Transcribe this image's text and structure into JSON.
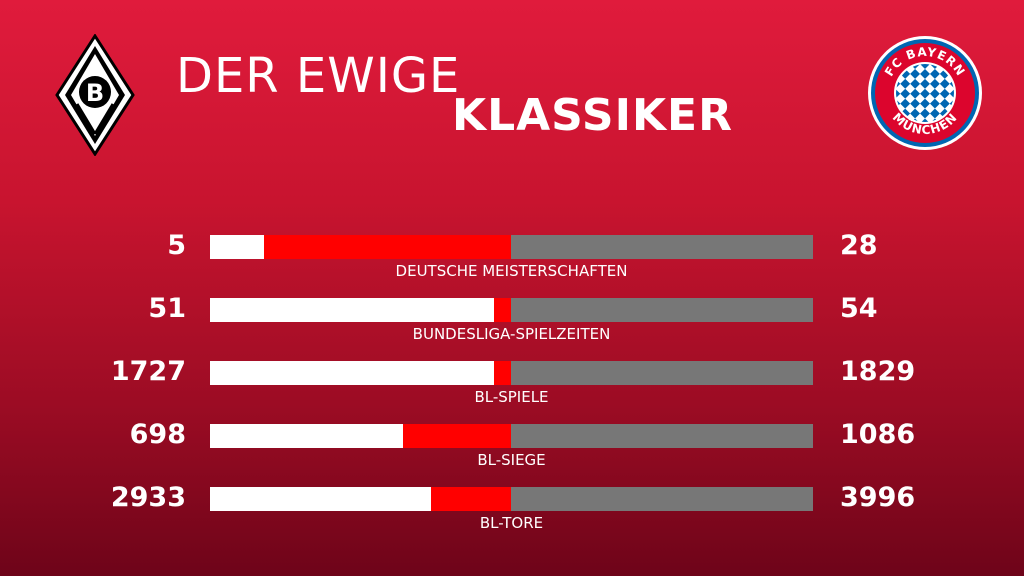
{
  "header": {
    "title_line1": "DER EWIGE",
    "title_line2": "KLASSIKER"
  },
  "teams": {
    "left": {
      "logo_icon": "borussia-moenchengladbach-crest-icon",
      "logo_letter": "B"
    },
    "right": {
      "logo_icon": "fc-bayern-muenchen-crest-icon",
      "logo_text_top": "FC BAYERN",
      "logo_text_bottom": "MÜNCHEN"
    }
  },
  "colors": {
    "background_top": "#e01b3c",
    "background_bottom": "#6e0419",
    "left_team_bar": "#ffffff",
    "right_team_bar": "#777777",
    "mid_bar": "#ff0000"
  },
  "chart_data": {
    "type": "bar",
    "categories": [
      "DEUTSCHE MEISTERSCHAFTEN",
      "BUNDESLIGA-SPIELZEITEN",
      "BL-SPIELE",
      "BL-SIEGE",
      "BL-TORE"
    ],
    "series": [
      {
        "values": [
          5,
          51,
          1727,
          698,
          2933
        ]
      },
      {
        "values": [
          28,
          54,
          1829,
          1086,
          3996
        ]
      }
    ]
  }
}
